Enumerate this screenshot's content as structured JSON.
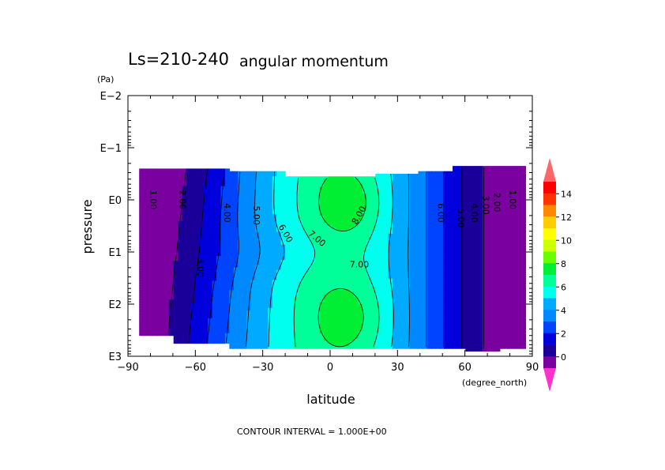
{
  "chart_data": {
    "type": "heatmap",
    "title_left": "Ls=210-240",
    "title": "angular momentum",
    "xlabel": "latitude",
    "xunit": "(degree_north)",
    "ylabel": "pressure",
    "yunit": "(Pa)",
    "footer": "CONTOUR INTERVAL = 1.000E+00",
    "xlim": [
      -90,
      90
    ],
    "ylim_log10": [
      3,
      -2
    ],
    "x_ticks": [
      -90,
      -60,
      -30,
      0,
      30,
      60,
      90
    ],
    "x_tick_labels": [
      "−90",
      "−60",
      "−30",
      "0",
      "30",
      "60",
      "90"
    ],
    "y_tick_labels": [
      "E−2",
      "E−1",
      "E0",
      "E1",
      "E2",
      "E3"
    ],
    "contour_interval": 1.0,
    "colorbar": {
      "labels": [
        "0",
        "2",
        "4",
        "6",
        "8",
        "10",
        "12",
        "14"
      ],
      "colors": [
        "#ff33cc",
        "#7a00a0",
        "#1a0099",
        "#0000dd",
        "#0044ff",
        "#0088ff",
        "#00aaff",
        "#00ffee",
        "#00ff99",
        "#00ee33",
        "#66ff00",
        "#ccff00",
        "#ffff00",
        "#ffcc00",
        "#ff8800",
        "#ff3300",
        "#ff0000",
        "#ff6666"
      ]
    },
    "contour_labels": [
      {
        "text": "1.00",
        "lat": -79,
        "log10p": 0.0
      },
      {
        "text": "2.00",
        "lat": -66,
        "log10p": 0.0
      },
      {
        "text": "3.00",
        "lat": -58,
        "log10p": 1.3
      },
      {
        "text": "4.00",
        "lat": -46,
        "log10p": 0.25
      },
      {
        "text": "5.00",
        "lat": -33,
        "log10p": 0.3
      },
      {
        "text": "6.00",
        "lat": -20,
        "log10p": 0.65
      },
      {
        "text": "7.00",
        "lat": -6,
        "log10p": 0.75
      },
      {
        "text": "8.00",
        "lat": 13,
        "log10p": 0.3
      },
      {
        "text": "7.00",
        "lat": 13,
        "log10p": 1.25
      },
      {
        "text": "6.00",
        "lat": 49,
        "log10p": 0.25
      },
      {
        "text": "5.00",
        "lat": 58,
        "log10p": 0.35
      },
      {
        "text": "4.00",
        "lat": 64,
        "log10p": 0.25
      },
      {
        "text": "3.00",
        "lat": 69,
        "log10p": 0.1
      },
      {
        "text": "2.00",
        "lat": 74,
        "log10p": 0.05
      },
      {
        "text": "1.00",
        "lat": 81,
        "log10p": 0.0
      }
    ]
  }
}
